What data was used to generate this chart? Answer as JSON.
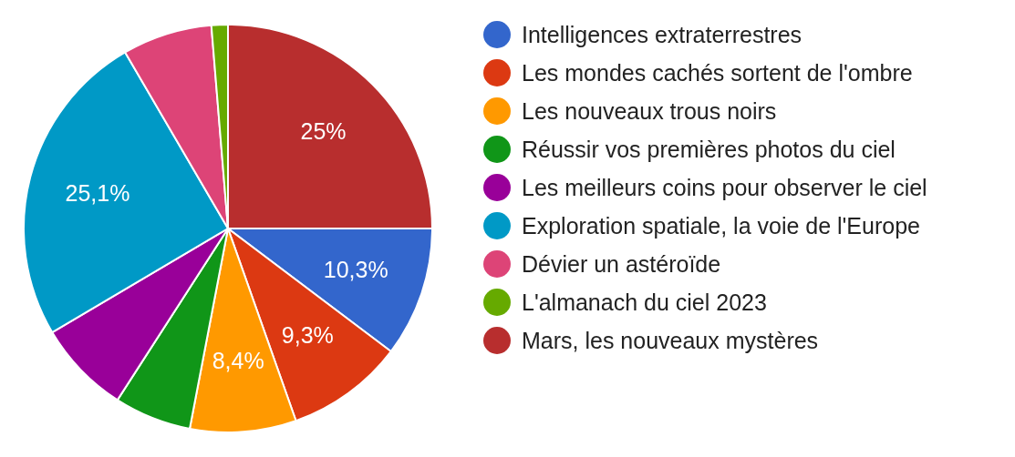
{
  "chart_data": {
    "type": "pie",
    "categories": [
      "Intelligences extraterrestres",
      "Les mondes cachés sortent de l'ombre",
      "Les nouveaux trous noirs",
      "Réussir vos premières photos du ciel",
      "Les meilleurs coins pour observer le ciel",
      "Exploration spatiale, la voie de l'Europe",
      "Dévier un astéroïde",
      "L'almanach du ciel 2023",
      "Mars, les nouveaux mystères"
    ],
    "values": [
      10.3,
      9.3,
      8.4,
      6.1,
      7.4,
      25.1,
      7.1,
      1.3,
      25
    ],
    "colors": [
      "#3366cc",
      "#dc3912",
      "#ff9900",
      "#109618",
      "#990099",
      "#0099c6",
      "#dd4477",
      "#66aa00",
      "#b82e2e"
    ],
    "value_labels": [
      "10,3%",
      "9,3%",
      "8,4%",
      null,
      null,
      "25,1%",
      null,
      null,
      "25%"
    ],
    "legend": "right"
  }
}
